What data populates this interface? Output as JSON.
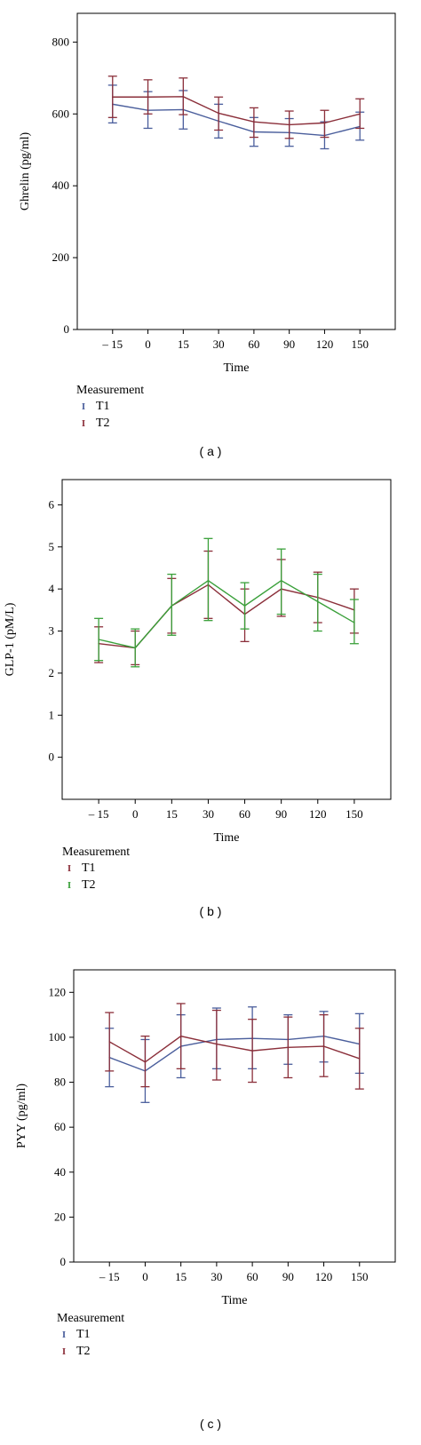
{
  "chart_data": [
    {
      "type": "line",
      "title": "",
      "xlabel": "Time",
      "ylabel": "Ghrelin (pg/ml)",
      "categories": [
        "– 15",
        "0",
        "15",
        "30",
        "60",
        "90",
        "120",
        "150"
      ],
      "ylim": [
        0,
        880
      ],
      "yticks": [
        0,
        200,
        400,
        600,
        800
      ],
      "legend_title": "Measurement",
      "series": [
        {
          "name": "T1",
          "color": "#4a5e9c",
          "values": [
            627,
            610,
            612,
            580,
            550,
            548,
            540,
            565
          ],
          "err_low": [
            575,
            560,
            558,
            533,
            510,
            510,
            503,
            527
          ],
          "err_high": [
            680,
            662,
            665,
            627,
            590,
            587,
            578,
            605
          ]
        },
        {
          "name": "T2",
          "color": "#8b2f3a",
          "values": [
            647,
            647,
            648,
            602,
            578,
            570,
            575,
            600
          ],
          "err_low": [
            590,
            600,
            598,
            555,
            535,
            532,
            535,
            560
          ],
          "err_high": [
            705,
            695,
            700,
            647,
            617,
            608,
            610,
            642
          ]
        }
      ],
      "caption": "( a )"
    },
    {
      "type": "line",
      "title": "",
      "xlabel": "Time",
      "ylabel": "GLP-1 (pM/L)",
      "categories": [
        "– 15",
        "0",
        "15",
        "30",
        "60",
        "90",
        "120",
        "150"
      ],
      "ylim": [
        -1,
        6.6
      ],
      "yticks": [
        0,
        1,
        2,
        3,
        4,
        5,
        6
      ],
      "legend_title": "Measurement",
      "series": [
        {
          "name": "T1",
          "color": "#8b2f3a",
          "values": [
            2.7,
            2.6,
            3.6,
            4.1,
            3.4,
            4.0,
            3.8,
            3.5
          ],
          "err_low": [
            2.25,
            2.2,
            2.95,
            3.3,
            2.75,
            3.35,
            3.2,
            2.95
          ],
          "err_high": [
            3.1,
            3.0,
            4.25,
            4.9,
            4.0,
            4.7,
            4.4,
            4.0
          ]
        },
        {
          "name": "T2",
          "color": "#3aa03a",
          "values": [
            2.8,
            2.6,
            3.6,
            4.2,
            3.6,
            4.2,
            3.7,
            3.2
          ],
          "err_low": [
            2.3,
            2.15,
            2.9,
            3.25,
            3.05,
            3.4,
            3.0,
            2.7
          ],
          "err_high": [
            3.3,
            3.05,
            4.35,
            5.2,
            4.15,
            4.95,
            4.35,
            3.75
          ]
        }
      ],
      "caption": "( b )"
    },
    {
      "type": "line",
      "title": "",
      "xlabel": "Time",
      "ylabel": "PYY (pg/ml)",
      "categories": [
        "– 15",
        "0",
        "15",
        "30",
        "60",
        "90",
        "120",
        "150"
      ],
      "ylim": [
        0,
        130
      ],
      "yticks": [
        0,
        20,
        40,
        60,
        80,
        100,
        120
      ],
      "legend_title": "Measurement",
      "series": [
        {
          "name": "T1",
          "color": "#4a5e9c",
          "values": [
            91,
            85,
            96,
            99,
            99.5,
            99,
            100.5,
            97
          ],
          "err_low": [
            78,
            71,
            82,
            86,
            86,
            88,
            89,
            84
          ],
          "err_high": [
            104,
            99,
            110,
            113,
            113.5,
            110,
            111.5,
            110.5
          ]
        },
        {
          "name": "T2",
          "color": "#8b2f3a",
          "values": [
            98,
            89,
            100.5,
            97,
            94,
            95.5,
            96,
            90.5
          ],
          "err_low": [
            85,
            78,
            86,
            81,
            80,
            82,
            82.5,
            77
          ],
          "err_high": [
            111,
            100.5,
            115,
            112,
            108,
            109,
            110,
            104
          ]
        }
      ],
      "caption": "( c )"
    }
  ]
}
